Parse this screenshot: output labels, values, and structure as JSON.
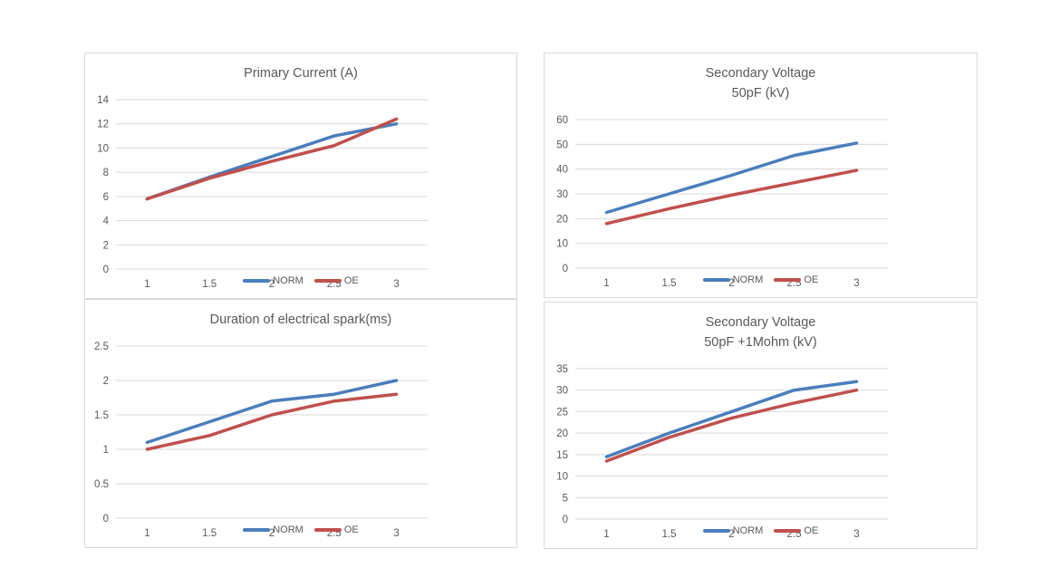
{
  "colors": {
    "norm": "#4a7ebc",
    "oe": "#c0504d",
    "grid": "#d9d9d9",
    "axis_text": "#595959",
    "title_text": "#595959",
    "panel_border": "#d9d9d9",
    "background": "#ffffff"
  },
  "legend": {
    "items": [
      {
        "label": "NORM",
        "color_key": "norm"
      },
      {
        "label": "OE",
        "color_key": "oe"
      }
    ]
  },
  "chart_data": [
    {
      "id": "primary-current",
      "type": "line",
      "title": "Primary Current (A)",
      "title_lines": [
        "Primary Current (A)"
      ],
      "xlabel": "",
      "ylabel": "",
      "x": [
        1,
        1.5,
        2,
        2.5,
        3
      ],
      "x_tick_labels": [
        "1",
        "1.5",
        "2",
        "2.5",
        "3"
      ],
      "ylim": [
        0,
        14
      ],
      "y_step": 2,
      "y_tick_labels": [
        "0",
        "2",
        "4",
        "6",
        "8",
        "10",
        "12",
        "14"
      ],
      "grid": true,
      "legend_position": "bottom-center-overlapping-x-axis",
      "series": [
        {
          "name": "NORM",
          "color_key": "norm",
          "values": [
            5.8,
            7.6,
            9.3,
            11,
            12
          ]
        },
        {
          "name": "OE",
          "color_key": "oe",
          "values": [
            5.8,
            7.5,
            8.9,
            10.2,
            12.4
          ]
        }
      ]
    },
    {
      "id": "secondary-voltage-50pf",
      "type": "line",
      "title": "Secondary Voltage 50pF (kV)",
      "title_lines": [
        "Secondary Voltage",
        "50pF (kV)"
      ],
      "xlabel": "",
      "ylabel": "",
      "x": [
        1,
        1.5,
        2,
        2.5,
        3
      ],
      "x_tick_labels": [
        "1",
        "1.5",
        "2",
        "2.5",
        "3"
      ],
      "ylim": [
        0,
        60
      ],
      "y_step": 10,
      "y_tick_labels": [
        "0",
        "10",
        "20",
        "30",
        "40",
        "50",
        "60"
      ],
      "grid": true,
      "legend_position": "bottom-center-overlapping-x-axis",
      "series": [
        {
          "name": "NORM",
          "color_key": "norm",
          "values": [
            22.5,
            30,
            37.5,
            45.5,
            50.5
          ]
        },
        {
          "name": "OE",
          "color_key": "oe",
          "values": [
            18,
            24,
            29.5,
            34.5,
            39.5
          ]
        }
      ]
    },
    {
      "id": "spark-duration",
      "type": "line",
      "title": "Duration of electrical spark(ms)",
      "title_lines": [
        "Duration of electrical spark(ms)"
      ],
      "xlabel": "",
      "ylabel": "",
      "x": [
        1,
        1.5,
        2,
        2.5,
        3
      ],
      "x_tick_labels": [
        "1",
        "1.5",
        "2",
        "2.5",
        "3"
      ],
      "ylim": [
        0,
        2.5
      ],
      "y_step": 0.5,
      "y_tick_labels": [
        "0",
        "0.5",
        "1",
        "1.5",
        "2",
        "2.5"
      ],
      "grid": true,
      "legend_position": "bottom-center-overlapping-x-axis",
      "series": [
        {
          "name": "NORM",
          "color_key": "norm",
          "values": [
            1.1,
            1.4,
            1.7,
            1.8,
            2.0
          ]
        },
        {
          "name": "OE",
          "color_key": "oe",
          "values": [
            1.0,
            1.2,
            1.5,
            1.7,
            1.8
          ]
        }
      ]
    },
    {
      "id": "secondary-voltage-50pf-1mohm",
      "type": "line",
      "title": "Secondary Voltage 50pF +1Mohm (kV)",
      "title_lines": [
        "Secondary Voltage",
        "50pF +1Mohm (kV)"
      ],
      "xlabel": "",
      "ylabel": "",
      "x": [
        1,
        1.5,
        2,
        2.5,
        3
      ],
      "x_tick_labels": [
        "1",
        "1.5",
        "2",
        "2.5",
        "3"
      ],
      "ylim": [
        0,
        35
      ],
      "y_step": 5,
      "y_tick_labels": [
        "0",
        "5",
        "10",
        "15",
        "20",
        "25",
        "30",
        "35"
      ],
      "grid": true,
      "legend_position": "bottom-center-overlapping-x-axis",
      "series": [
        {
          "name": "NORM",
          "color_key": "norm",
          "values": [
            14.5,
            20,
            25,
            30,
            32
          ]
        },
        {
          "name": "OE",
          "color_key": "oe",
          "values": [
            13.5,
            19,
            23.5,
            27,
            30
          ]
        }
      ]
    }
  ]
}
